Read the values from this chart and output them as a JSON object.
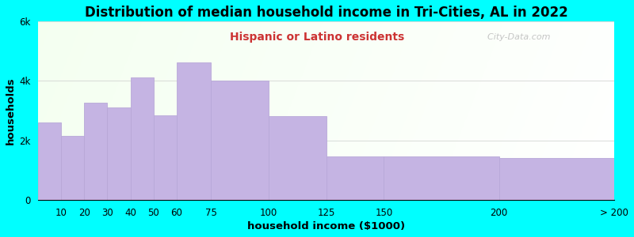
{
  "title": "Distribution of median household income in Tri-Cities, AL in 2022",
  "subtitle": "Hispanic or Latino residents",
  "xlabel": "household income ($1000)",
  "ylabel": "households",
  "background_color": "#00FFFF",
  "bar_color": "#C5B4E3",
  "bar_edge_color": "#B8A8D8",
  "bin_edges": [
    0,
    10,
    20,
    30,
    40,
    50,
    60,
    75,
    100,
    125,
    150,
    200,
    250
  ],
  "bin_labels": [
    "10",
    "20",
    "30",
    "40",
    "50",
    "60",
    "75",
    "100",
    "125",
    "150",
    "200",
    "> 200"
  ],
  "values": [
    2600,
    2150,
    3250,
    3100,
    4100,
    2850,
    4600,
    4000,
    2800,
    1450,
    1450,
    1400
  ],
  "ylim": [
    0,
    6000
  ],
  "ytick_labels": [
    "0",
    "2k",
    "4k",
    "6k"
  ],
  "ytick_values": [
    0,
    2000,
    4000,
    6000
  ],
  "watermark": "  City-Data.com",
  "title_fontsize": 12,
  "subtitle_fontsize": 10,
  "subtitle_color": "#CC3333",
  "axis_label_fontsize": 9.5,
  "tick_fontsize": 8.5
}
